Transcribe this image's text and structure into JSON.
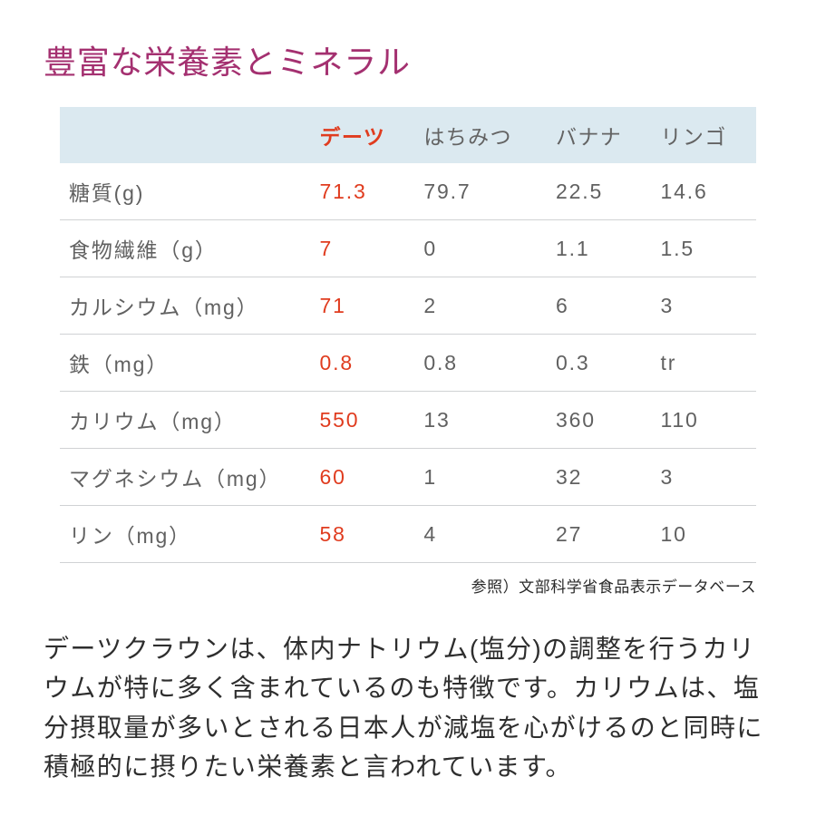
{
  "title": "豊富な栄養素とミネラル",
  "title_color": "#a43070",
  "table": {
    "type": "table",
    "header_bg": "#dbe9f0",
    "header_text_color": "#636363",
    "cell_text_color": "#616161",
    "border_color": "#d0d2d4",
    "highlight_color": "#e03c1f",
    "background_color": "#ffffff",
    "fontsize": 23,
    "columns": [
      "",
      "デーツ",
      "はちみつ",
      "バナナ",
      "リンゴ"
    ],
    "highlight_column_index": 1,
    "rows": [
      {
        "label": "糖質(g)",
        "values": [
          "71.3",
          "79.7",
          "22.5",
          "14.6"
        ]
      },
      {
        "label": "食物繊維（g）",
        "values": [
          "7",
          "0",
          "1.1",
          "1.5"
        ]
      },
      {
        "label": "カルシウム（mg）",
        "values": [
          "71",
          "2",
          "6",
          "3"
        ]
      },
      {
        "label": "鉄（mg）",
        "values": [
          "0.8",
          "0.8",
          "0.3",
          "tr"
        ]
      },
      {
        "label": "カリウム（mg）",
        "values": [
          "550",
          "13",
          "360",
          "110"
        ]
      },
      {
        "label": "マグネシウム（mg）",
        "values": [
          "60",
          "1",
          "32",
          "3"
        ]
      },
      {
        "label": "リン（mg）",
        "values": [
          "58",
          "4",
          "27",
          "10"
        ]
      }
    ]
  },
  "citation": "参照）文部科学省食品表示データベース",
  "body_text": "デーツクラウンは、体内ナトリウム(塩分)の調整を行うカリウムが特に多く含まれているのも特徴です。カリウムは、塩分摂取量が多いとされる日本人が減塩を心がけるのと同時に積極的に摂りたい栄養素と言われています。",
  "body_text_color": "#2e2e2e",
  "body_fontsize": 28
}
